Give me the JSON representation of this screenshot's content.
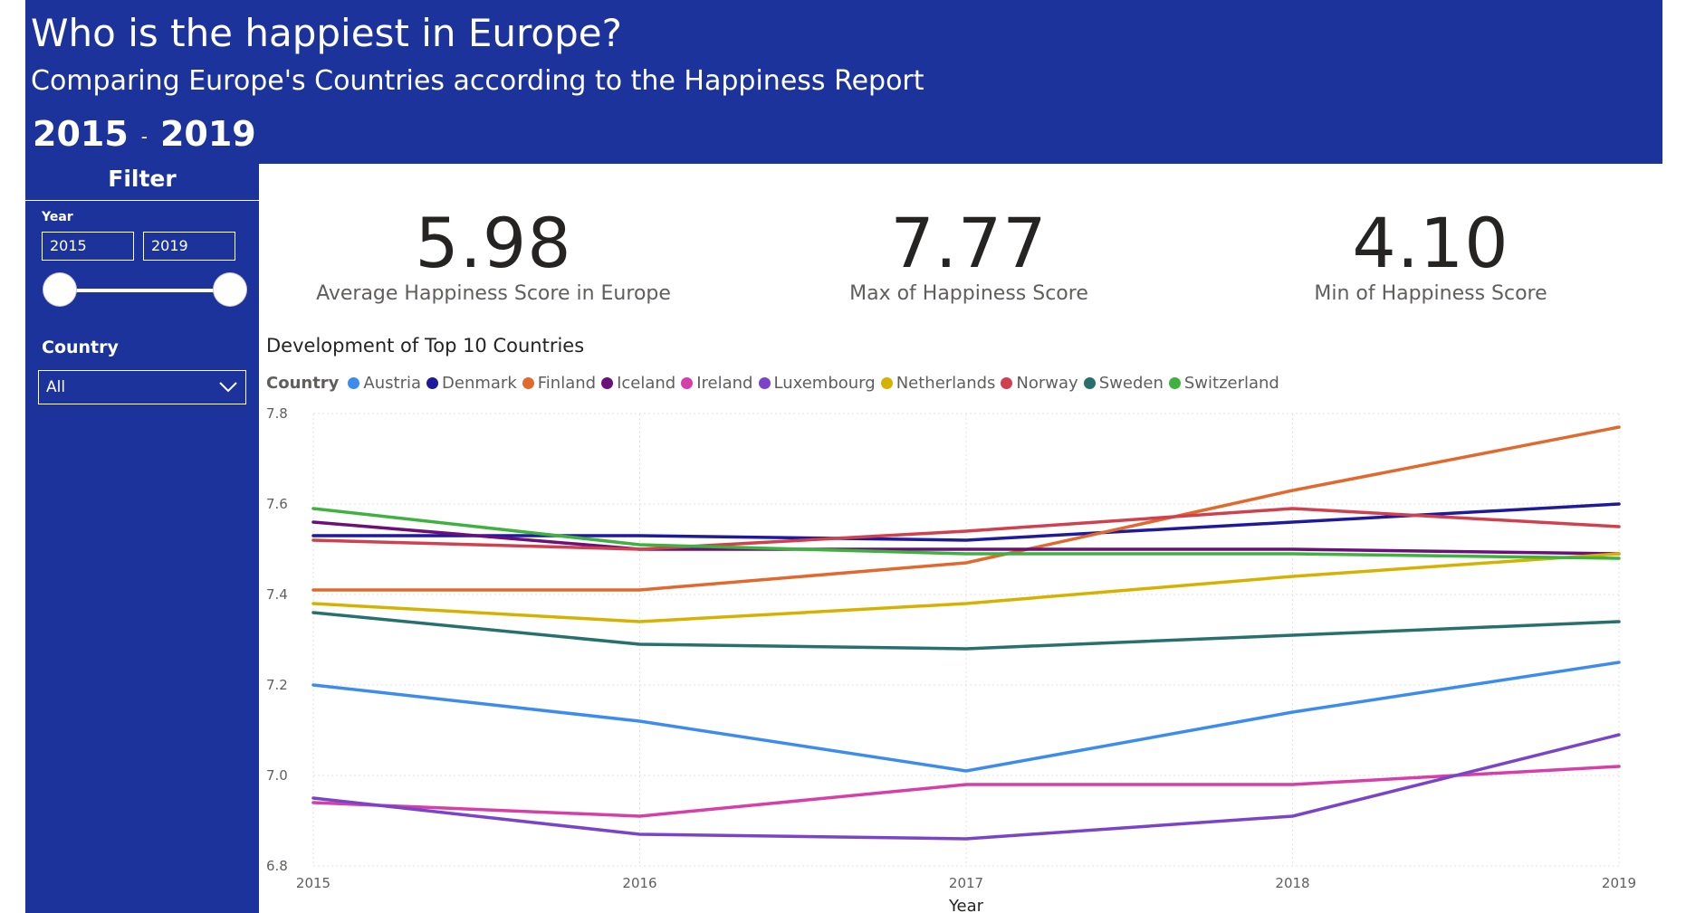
{
  "header": {
    "title": "Who is the happiest in Europe?",
    "subtitle": "Comparing Europe's Countries according to the Happiness Report",
    "year_from": "2015",
    "year_separator": "-",
    "year_to": "2019",
    "background_color": "#1c339b"
  },
  "filter": {
    "title": "Filter",
    "year_label": "Year",
    "year_from_value": "2015",
    "year_to_value": "2019",
    "slider_range": [
      2015,
      2019
    ],
    "slider_selected": [
      2015,
      2019
    ],
    "country_label": "Country",
    "country_value": "All",
    "country_icon": "chevron-down-icon"
  },
  "kpis": [
    {
      "value": "5.98",
      "label": "Average Happiness Score in Europe"
    },
    {
      "value": "7.77",
      "label": "Max of Happiness Score"
    },
    {
      "value": "4.10",
      "label": "Min of Happiness Score"
    }
  ],
  "chart_title": "Development of Top 10 Countries",
  "legend_title": "Country",
  "chart_data": {
    "type": "line",
    "xlabel": "Year",
    "ylabel": "",
    "x": [
      2015,
      2016,
      2017,
      2018,
      2019
    ],
    "x_ticks": [
      "2015",
      "2016",
      "2017",
      "2018",
      "2019"
    ],
    "ylim": [
      6.8,
      7.8
    ],
    "y_ticks": [
      "6.8",
      "7.0",
      "7.2",
      "7.4",
      "7.6",
      "7.8"
    ],
    "grid": true,
    "legend_position": "top-left",
    "series": [
      {
        "name": "Austria",
        "color": "#3c8cf0",
        "values": [
          7.2,
          7.12,
          7.01,
          7.14,
          7.25
        ]
      },
      {
        "name": "Denmark",
        "color": "#1f1a9c",
        "values": [
          7.53,
          7.53,
          7.52,
          7.56,
          7.6
        ]
      },
      {
        "name": "Finland",
        "color": "#e2692d",
        "values": [
          7.41,
          7.41,
          7.47,
          7.63,
          7.77
        ]
      },
      {
        "name": "Iceland",
        "color": "#6b0f7a",
        "values": [
          7.56,
          7.5,
          7.5,
          7.5,
          7.49
        ]
      },
      {
        "name": "Ireland",
        "color": "#d63fa8",
        "values": [
          6.94,
          6.91,
          6.98,
          6.98,
          7.02
        ]
      },
      {
        "name": "Luxembourg",
        "color": "#7a44c8",
        "values": [
          6.95,
          6.87,
          6.86,
          6.91,
          7.09
        ]
      },
      {
        "name": "Netherlands",
        "color": "#d6b200",
        "values": [
          7.38,
          7.34,
          7.38,
          7.44,
          7.49
        ]
      },
      {
        "name": "Norway",
        "color": "#d0404f",
        "values": [
          7.52,
          7.5,
          7.54,
          7.59,
          7.55
        ]
      },
      {
        "name": "Sweden",
        "color": "#27706d",
        "values": [
          7.36,
          7.29,
          7.28,
          7.31,
          7.34
        ]
      },
      {
        "name": "Switzerland",
        "color": "#3eb23e",
        "values": [
          7.59,
          7.51,
          7.49,
          7.49,
          7.48
        ]
      }
    ]
  }
}
